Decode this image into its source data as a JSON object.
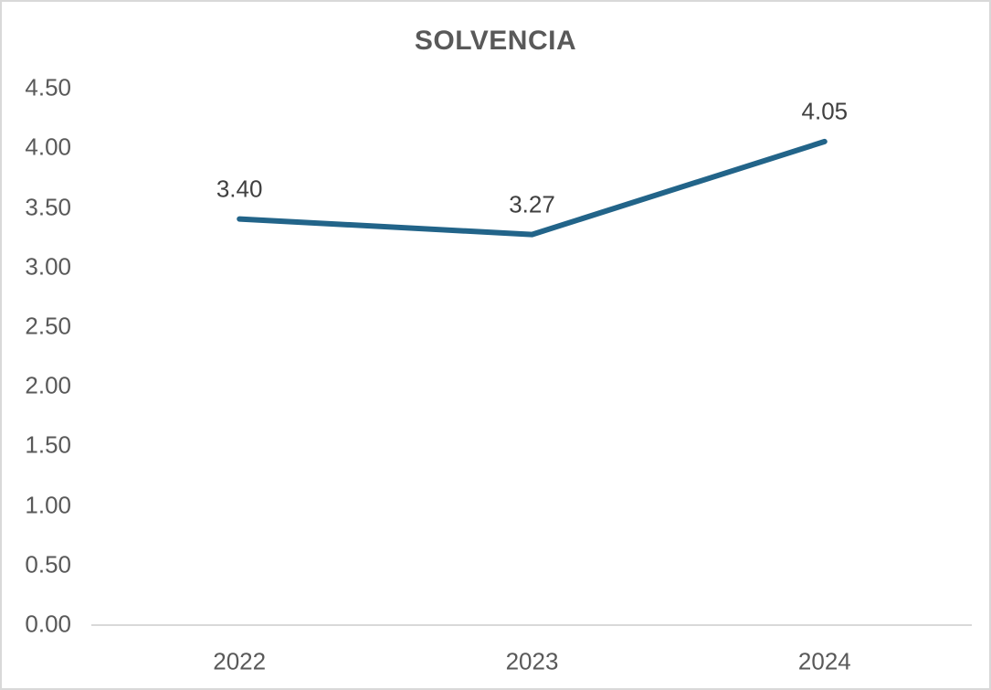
{
  "chart_data": {
    "type": "line",
    "title": "SOLVENCIA",
    "categories": [
      "2022",
      "2023",
      "2024"
    ],
    "series": [
      {
        "name": "SOLVENCIA",
        "values": [
          3.4,
          3.27,
          4.05
        ]
      }
    ],
    "point_labels": [
      "3.40",
      "3.27",
      "4.05"
    ],
    "y_ticks": [
      0.0,
      0.5,
      1.0,
      1.5,
      2.0,
      2.5,
      3.0,
      3.5,
      4.0,
      4.5
    ],
    "y_tick_labels": [
      "0.00",
      "0.50",
      "1.00",
      "1.50",
      "2.00",
      "2.50",
      "3.00",
      "3.50",
      "4.00",
      "4.50"
    ],
    "ylim": [
      0,
      4.5
    ],
    "xlabel": "",
    "ylabel": "",
    "grid": false,
    "legend": "none",
    "colors": {
      "line": "#226489",
      "title_text": "#595959",
      "axis_tick_text": "#595959",
      "data_label_text": "#404040",
      "axis_line": "#d9d9d9",
      "canvas_border": "#d9d9d9",
      "background": "#ffffff"
    }
  }
}
